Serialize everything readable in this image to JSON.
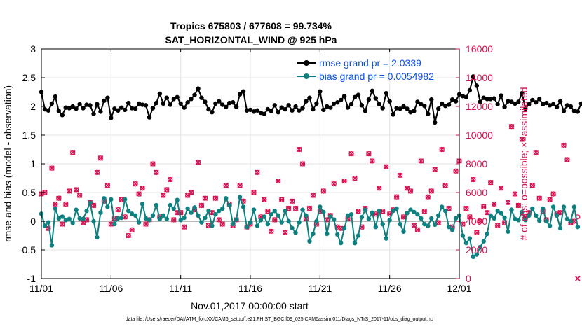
{
  "figure": {
    "title_line1": "Tropics 675803 / 677608 = 99.734%",
    "title_line2": "SAT_HORIZONTAL_WIND @ 925 hPa",
    "xlabel": "Nov.01,2017 00:00:00 start",
    "ylabel_left": "rmse and bias (model - observation)",
    "ylabel_right": "# of obs: o=possible; ×=assimilated",
    "footnote": "data file: /Users/raeder/DAI/ATM_forcXX/CAM6_setup/f.e21.FHIST_BGC.f09_025.CAM6assim.011/Diags_NTrS_2017-11/obs_diag_output.nc",
    "colors": {
      "rmse": "#000000",
      "bias": "#0e8080",
      "obs": "#d8104f",
      "legend_text": "#0a52e6",
      "zero_line": "#b8b8b8",
      "grid": "#e3e3e3"
    }
  },
  "chart_data": {
    "type": "line",
    "title": "Tropics 675803 / 677608 = 99.734%",
    "subtitle": "SAT_HORIZONTAL_WIND @ 925 hPa",
    "xlabel": "Nov.01,2017 00:00:00 start",
    "ylabel": "rmse and bias (model - observation)",
    "y2label": "# of obs: o=possible; ×=assimilated",
    "xlim": [
      0,
      30
    ],
    "ylim": [
      -1,
      3
    ],
    "y2lim": [
      0,
      16000
    ],
    "x_tick_values": [
      0,
      5,
      10,
      15,
      20,
      25,
      30
    ],
    "x_tick_labels": [
      "11/01",
      "11/06",
      "11/11",
      "11/16",
      "11/21",
      "11/26",
      "12/01"
    ],
    "y_ticks": [
      -1,
      -0.5,
      0,
      0.5,
      1,
      1.5,
      2,
      2.5,
      3
    ],
    "y2_ticks": [
      0,
      2000,
      4000,
      6000,
      8000,
      10000,
      12000,
      14000,
      16000
    ],
    "x_step_days": 0.25,
    "series": [
      {
        "name": "rmse grand pr",
        "legend": "rmse grand pr = 2.0339",
        "axis": "left",
        "values": [
          2.25,
          1.95,
          1.93,
          2.05,
          2.17,
          1.92,
          1.85,
          1.98,
          1.97,
          2.0,
          1.96,
          2.04,
          1.97,
          2.03,
          2.02,
          1.87,
          2.04,
          1.91,
          2.1,
          2.15,
          1.8,
          1.96,
          1.93,
          1.98,
          1.94,
          2.06,
          1.97,
          1.96,
          2.05,
          2.03,
          2.02,
          1.81,
          1.97,
          2.06,
          2.22,
          2.05,
          2.15,
          2.03,
          2.13,
          2.16,
          2.05,
          1.98,
          2.07,
          2.13,
          2.2,
          2.31,
          2.15,
          2.08,
          1.95,
          1.9,
          2.05,
          2.09,
          2.03,
          1.99,
          2.06,
          2.07,
          1.99,
          2.21,
          2.26,
          1.93,
          1.94,
          1.91,
          1.93,
          1.89,
          1.87,
          1.95,
          1.92,
          2.02,
          1.9,
          1.98,
          1.95,
          2.02,
          1.93,
          2.0,
          1.93,
          1.97,
          2.09,
          2.15,
          1.95,
          2.05,
          2.26,
          1.94,
          2.0,
          1.98,
          2.05,
          2.07,
          2.11,
          2.18,
          1.98,
          2.04,
          2.16,
          2.2,
          2.02,
          1.92,
          2.12,
          2.27,
          2.14,
          2.04,
          1.97,
          2.23,
          2.09,
          1.86,
          1.97,
          1.96,
          2.0,
          1.96,
          1.9,
          1.92,
          2.08,
          2.04,
          2.01,
          1.87,
          2.12,
          1.72,
          1.96,
          2.05,
          2.01,
          2.03,
          2.12,
          2.09,
          2.21,
          2.18,
          2.16,
          2.28,
          2.52,
          2.36,
          2.08,
          2.15,
          2.13,
          2.13,
          2.14,
          2.04,
          2.19,
          1.99,
          2.09,
          2.08,
          2.05,
          2.08,
          2.23,
          1.96,
          2.04,
          2.11,
          2.07,
          2.13,
          2.04,
          2.06,
          2.02,
          2.04,
          1.99,
          2.09,
          1.92,
          2.02,
          2.0,
          1.92,
          1.91,
          2.05
        ]
      },
      {
        "name": "bias grand pr",
        "legend": "bias grand pr = 0.0054982",
        "axis": "left",
        "values": [
          0.13,
          -0.08,
          -0.02,
          -0.42,
          0.22,
          0.05,
          0.08,
          0.02,
          0.04,
          -0.03,
          0.2,
          0.05,
          0.04,
          0.18,
          0.32,
          0.0,
          -0.28,
          0.15,
          0.4,
          0.25,
          0.38,
          -0.05,
          0.05,
          0.06,
          0.38,
          0.18,
          0.13,
          0.1,
          -0.02,
          0.3,
          0.05,
          0.02,
          0.1,
          0.28,
          0.04,
          0.1,
          0.04,
          0.28,
          0.22,
          0.37,
          0.02,
          0.06,
          0.22,
          0.15,
          0.24,
          0.1,
          -0.02,
          0.06,
          0.18,
          -0.08,
          0.12,
          0.18,
          0.22,
          0.4,
          0.28,
          -0.05,
          0.03,
          0.42,
          0.25,
          -0.1,
          -0.02,
          0.2,
          -0.08,
          0.02,
          0.08,
          -0.05,
          0.12,
          0.18,
          0.1,
          -0.02,
          0.18,
          0.0,
          -0.12,
          -0.2,
          -0.02,
          0.2,
          0.1,
          -0.35,
          -0.22,
          0.0,
          0.25,
          0.16,
          -0.22,
          0.08,
          0.03,
          -0.23,
          -0.38,
          -0.12,
          0.1,
          0.12,
          -0.38,
          -0.25,
          0.07,
          0.2,
          0.04,
          0.15,
          -0.1,
          0.18,
          -0.05,
          -0.3,
          0.02,
          0.18,
          0.22,
          -0.05,
          -0.18,
          0.14,
          0.2,
          0.16,
          0.12,
          0.05,
          -0.05,
          -0.08,
          0.05,
          -0.06,
          0.1,
          0.25,
          0.18,
          -0.1,
          -0.15,
          0.05,
          0.1,
          -0.25,
          -0.38,
          -0.3,
          -0.62,
          -0.58,
          -0.45,
          -0.35,
          -0.22,
          0.1,
          0.05,
          0.18,
          0.14,
          0.06,
          -0.18,
          0.2,
          0.04,
          0.02,
          0.16,
          0.02,
          0.1,
          0.22,
          0.1,
          0.01,
          0.22,
          0.0,
          -0.08,
          0.25,
          0.1,
          -0.12,
          0.25,
          0.04,
          0.0,
          0.25,
          -0.1
        ]
      },
      {
        "name": "# of obs possible",
        "axis": "right",
        "marker": "o",
        "values": [
          5900,
          6000,
          3500,
          7700,
          5200,
          5600,
          3800,
          5200,
          6100,
          8800,
          6200,
          5800,
          3900,
          4100,
          5300,
          5100,
          7400,
          8400,
          5400,
          6500,
          3800,
          4200,
          4800,
          5500,
          4300,
          3000,
          3400,
          6600,
          5900,
          6300,
          3800,
          4100,
          8000,
          7400,
          4300,
          5800,
          6200,
          6900,
          4100,
          4600,
          4600,
          3600,
          5800,
          6000,
          4800,
          8100,
          5100,
          5600,
          3700,
          4600,
          5600,
          4100,
          3800,
          6500,
          5200,
          3700,
          4100,
          6500,
          5400,
          3600,
          3800,
          6000,
          7400,
          4300,
          5500,
          4700,
          3300,
          4100,
          6800,
          5500,
          3200,
          4900,
          5400,
          4900,
          9000,
          8000,
          4200,
          4900,
          5800,
          3800,
          4700,
          6100,
          4100,
          4400,
          6600,
          3600,
          3500,
          6800,
          4200,
          8700,
          7000,
          4700,
          3600,
          4900,
          8700,
          8200,
          4500,
          6300,
          4700,
          7800,
          4500,
          4800,
          5700,
          7200,
          4300,
          6300,
          6100,
          3700,
          3400,
          8200,
          4700,
          5700,
          6100,
          7600,
          3900,
          9000,
          6500,
          4900,
          3600,
          7500,
          8200,
          3800,
          4900,
          4300,
          6900,
          3200,
          4000,
          5000,
          4600,
          6700,
          5200,
          3700,
          6300,
          3900,
          5300,
          10600,
          5900,
          5100,
          9700,
          4300,
          4600,
          6500,
          8800,
          5600,
          4700,
          4100,
          5500,
          5900,
          4500,
          4600,
          9300,
          8300,
          3900,
          4000,
          4300
        ]
      },
      {
        "name": "# of obs assimilated",
        "axis": "right",
        "marker": "x",
        "values": [
          5900,
          6000,
          3500,
          7700,
          5200,
          5600,
          3800,
          5200,
          6100,
          8800,
          6200,
          5800,
          3900,
          4100,
          5300,
          5100,
          7400,
          8400,
          5400,
          6500,
          3800,
          4200,
          4800,
          5500,
          4300,
          3000,
          3400,
          6600,
          5900,
          6300,
          3800,
          4100,
          8000,
          7400,
          4300,
          5800,
          6200,
          6900,
          4100,
          4600,
          4600,
          3600,
          5800,
          6000,
          4800,
          8100,
          5100,
          5600,
          3700,
          4600,
          5600,
          4100,
          3800,
          6500,
          5200,
          3700,
          4100,
          6500,
          5400,
          3600,
          3800,
          6000,
          7400,
          4300,
          5500,
          4700,
          3300,
          4100,
          6800,
          5500,
          3200,
          4900,
          5400,
          4900,
          9000,
          8000,
          4200,
          4900,
          5800,
          3800,
          4700,
          6100,
          4100,
          4400,
          6600,
          3600,
          3500,
          6800,
          4200,
          8700,
          7000,
          4700,
          3600,
          4900,
          8700,
          8200,
          4500,
          6300,
          4700,
          7800,
          4500,
          4800,
          5700,
          7200,
          4300,
          6300,
          6100,
          3700,
          3400,
          8200,
          4700,
          5700,
          6100,
          7600,
          3900,
          9000,
          6500,
          4900,
          3600,
          7500,
          8200,
          3800,
          4900,
          4300,
          6900,
          3200,
          4000,
          5000,
          4600,
          6700,
          5200,
          3700,
          6300,
          3900,
          5300,
          10600,
          5900,
          5100,
          9700,
          4300,
          4600,
          6500,
          8800,
          5600,
          4700,
          4100,
          5500,
          5900,
          4500,
          4600,
          9300,
          8300,
          3900,
          4000,
          0
        ]
      }
    ],
    "legend": [
      "rmse grand pr = 2.0339",
      "bias grand pr = 0.0054982"
    ],
    "legend_position": "top-right",
    "grid": true
  }
}
